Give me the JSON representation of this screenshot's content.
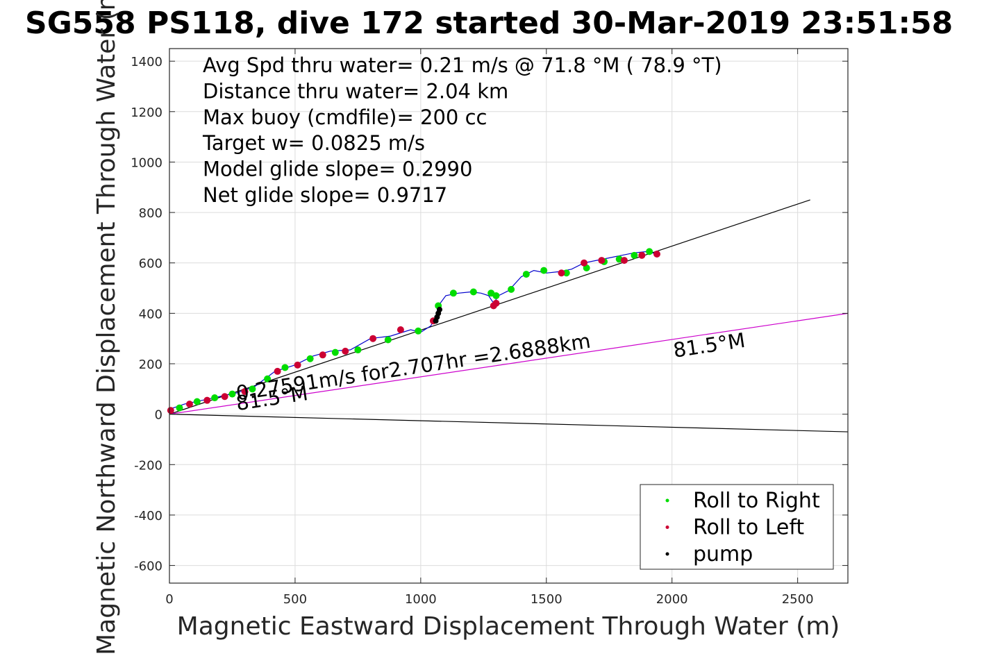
{
  "chart_data": {
    "type": "scatter",
    "title": "SG558 PS118, dive 172 started 30-Mar-2019 23:51:58",
    "xlabel": "Magnetic Eastward Displacement Through Water (m)",
    "ylabel": "Magnetic Northward Displacement Through Water (m)",
    "xlim": [
      0,
      2700
    ],
    "ylim": [
      -670,
      1450
    ],
    "xticks": [
      0,
      500,
      1000,
      1500,
      2000,
      2500
    ],
    "yticks": [
      -600,
      -400,
      -200,
      0,
      200,
      400,
      600,
      800,
      1000,
      1200,
      1400
    ],
    "grid": true,
    "legend_position": "bottom-right",
    "info_lines": [
      "Avg Spd thru water=  0.21 m/s @  71.8 °M ( 78.9 °T)",
      "Distance thru water=  2.04 km",
      "Max buoy (cmdfile)= 200 cc",
      "Target w= 0.0825 m/s",
      "Model glide slope= 0.2990",
      "Net glide slope= 0.9717"
    ],
    "annotations": [
      {
        "text": "0.27591m/s for2.707hr =2.6888km",
        "x": 270,
        "y": 55,
        "angle_deg": -8.5
      },
      {
        "text": "81.5°M",
        "x": 270,
        "y": 15,
        "angle_deg": -8.5
      },
      {
        "text": "81.5°M",
        "x": 2010,
        "y": 225,
        "angle_deg": -8.5
      }
    ],
    "lines": [
      {
        "name": "heading",
        "x": [
          0,
          2550
        ],
        "y": [
          0,
          850
        ],
        "color": "#000000"
      },
      {
        "name": "current",
        "x": [
          0,
          2700
        ],
        "y": [
          0,
          400
        ],
        "color": "#cc00cc"
      },
      {
        "name": "current-ref",
        "x": [
          0,
          2700
        ],
        "y": [
          0,
          -70
        ],
        "color": "#000000"
      }
    ],
    "track": {
      "color": "#0000cc",
      "x": [
        0,
        60,
        130,
        200,
        270,
        340,
        420,
        500,
        570,
        640,
        720,
        800,
        880,
        960,
        1000,
        1040,
        1060,
        1070,
        1100,
        1150,
        1200,
        1240,
        1270,
        1290,
        1310,
        1350,
        1400,
        1450,
        1500,
        1550,
        1600,
        1650,
        1700,
        1750,
        1800,
        1850,
        1900,
        1940
      ],
      "y": [
        20,
        40,
        55,
        70,
        85,
        110,
        170,
        195,
        230,
        250,
        255,
        300,
        310,
        335,
        325,
        350,
        385,
        430,
        470,
        480,
        485,
        480,
        470,
        440,
        470,
        490,
        545,
        570,
        560,
        565,
        575,
        600,
        610,
        620,
        630,
        640,
        645,
        635
      ]
    },
    "series": [
      {
        "name": "Roll to Right",
        "color": "#00dd00",
        "x": [
          40,
          110,
          180,
          250,
          330,
          390,
          460,
          560,
          660,
          750,
          870,
          990,
          1070,
          1130,
          1210,
          1280,
          1300,
          1360,
          1420,
          1490,
          1580,
          1660,
          1730,
          1790,
          1850,
          1910
        ],
        "y": [
          25,
          50,
          65,
          80,
          100,
          140,
          185,
          220,
          245,
          255,
          295,
          330,
          430,
          480,
          485,
          480,
          470,
          495,
          555,
          570,
          560,
          580,
          605,
          615,
          630,
          645
        ]
      },
      {
        "name": "Roll to Left",
        "color": "#cc0033",
        "x": [
          5,
          80,
          150,
          220,
          300,
          430,
          510,
          610,
          700,
          810,
          920,
          1050,
          1290,
          1300,
          1560,
          1650,
          1720,
          1810,
          1880,
          1940
        ],
        "y": [
          15,
          40,
          55,
          70,
          90,
          170,
          195,
          235,
          250,
          300,
          335,
          370,
          430,
          440,
          560,
          600,
          610,
          610,
          630,
          635
        ]
      },
      {
        "name": "pump",
        "color": "#000000",
        "x": [
          1060,
          1065,
          1070,
          1075
        ],
        "y": [
          370,
          385,
          400,
          415
        ]
      }
    ]
  }
}
